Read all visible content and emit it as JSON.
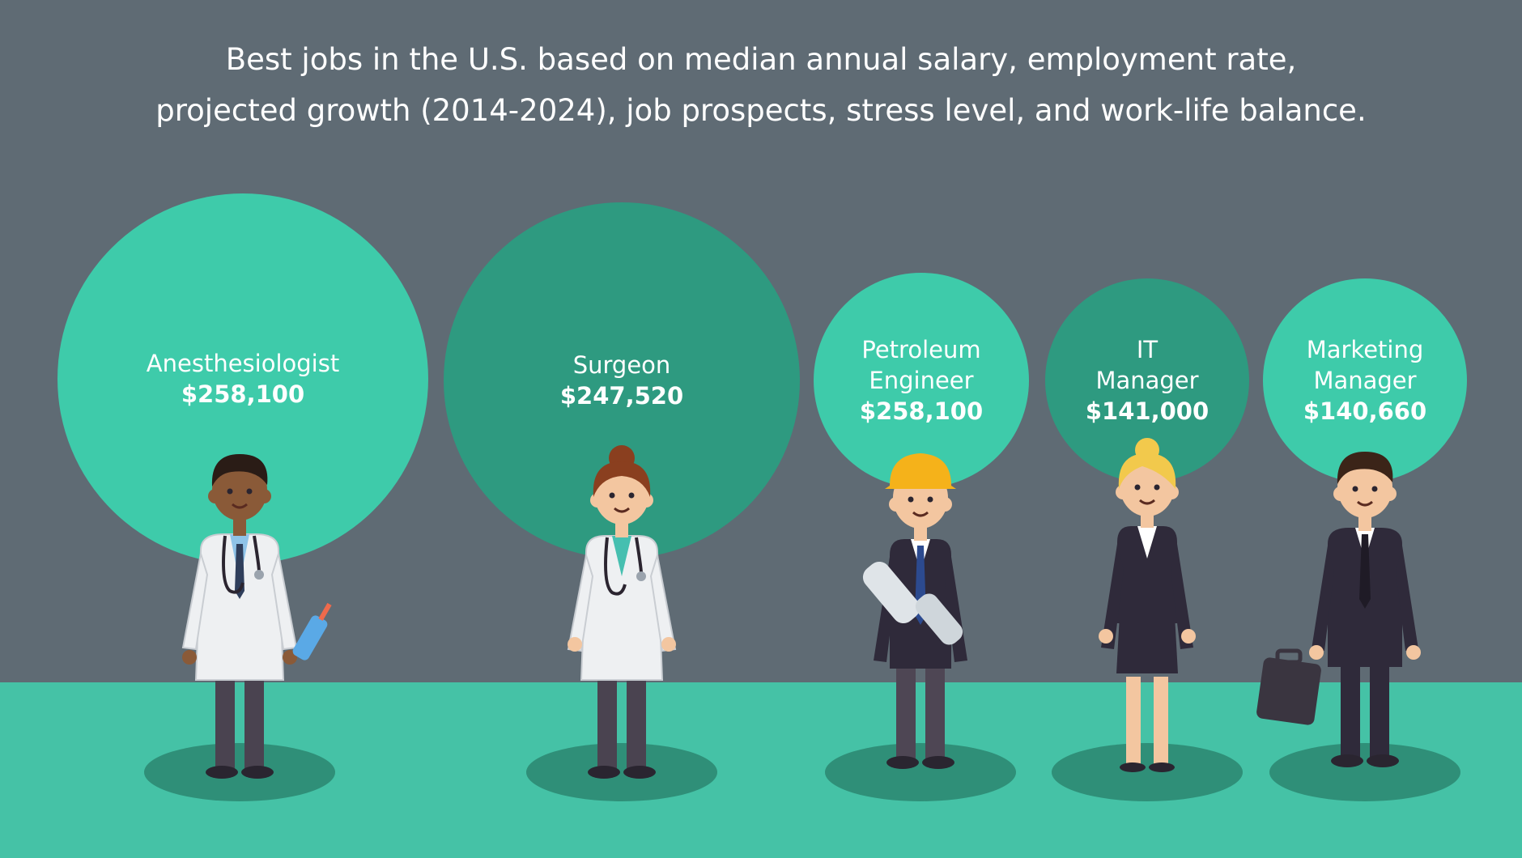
{
  "title_lines": [
    "Best jobs in the U.S. based on median annual salary, employment rate,",
    "projected growth (2014-2024), job prospects, stress level, and work-life balance."
  ],
  "colors": {
    "background": "#5f6b74",
    "ground": "#45c2a6",
    "bubble_light": "#3ecbaa",
    "bubble_dark": "#2e9a80",
    "shadow": "#2f8f78"
  },
  "chart_data": {
    "type": "bubble",
    "categories": [
      "Anesthesiologist",
      "Surgeon",
      "Petroleum Engineer",
      "IT Manager",
      "Marketing Manager"
    ],
    "name_lines": [
      [
        "Anesthesiologist"
      ],
      [
        "Surgeon"
      ],
      [
        "Petroleum",
        "Engineer"
      ],
      [
        "IT",
        "Manager"
      ],
      [
        "Marketing",
        "Manager"
      ]
    ],
    "value_labels": [
      "$258,100",
      "$247,520",
      "$258,100",
      "$141,000",
      "$140,660"
    ],
    "values": [
      258100,
      247520,
      258100,
      141000,
      140660
    ],
    "figures": [
      "doctor-male",
      "doctor-female",
      "engineer",
      "businesswoman",
      "businessman"
    ]
  }
}
